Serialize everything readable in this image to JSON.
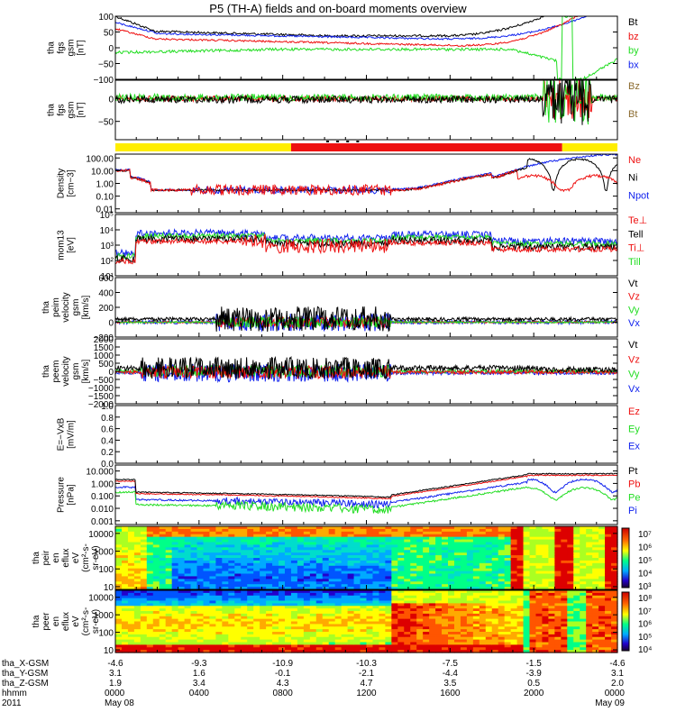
{
  "title": "P5 (TH-A) fields and on-board moments overview",
  "colors": {
    "black": "#000000",
    "red": "#ee1111",
    "green": "#22dd22",
    "blue": "#1122ee",
    "yellow": "#ffee00",
    "brown": "#8b6b2f"
  },
  "chart_data": [
    {
      "type": "line",
      "ylabel": [
        "tha",
        "fgs",
        "gsm",
        "[nT]"
      ],
      "yscale": "linear",
      "ylim": [
        -100,
        100
      ],
      "yticks": [
        "100",
        "50",
        "0",
        "−50",
        "−100"
      ],
      "legend": [
        {
          "label": "Bt",
          "color": "black"
        },
        {
          "label": "bz",
          "color": "red"
        },
        {
          "label": "by",
          "color": "green"
        },
        {
          "label": "bx",
          "color": "blue"
        }
      ]
    },
    {
      "type": "line",
      "ylabel": [
        "tha",
        "fgs",
        "gsm",
        "[nT]"
      ],
      "yscale": "linear",
      "ylim": [
        -90,
        40
      ],
      "yticks": [
        "0",
        "−50"
      ],
      "yticks_values": [
        0,
        -50
      ],
      "legend": [
        {
          "label": "Bz",
          "color": "brown"
        },
        {
          "label": "Bt",
          "color": "brown"
        }
      ]
    },
    {
      "type": "bar",
      "label": "region flag",
      "segments": [
        {
          "from": 0,
          "to": 0.35,
          "color": "yellow"
        },
        {
          "from": 0.35,
          "to": 0.89,
          "color": "red"
        },
        {
          "from": 0.89,
          "to": 1.0,
          "color": "yellow"
        }
      ]
    },
    {
      "type": "line",
      "ylabel": [
        "Density",
        "[cm−3]"
      ],
      "yscale": "log",
      "ylim": [
        0.005,
        200
      ],
      "yticks": [
        "100.00",
        "10.00",
        "1.00",
        "0.10",
        "0.01"
      ],
      "yticks_values": [
        100,
        10,
        1,
        0.1,
        0.01
      ],
      "legend": [
        {
          "label": "Ne",
          "color": "red"
        },
        {
          "label": "Ni",
          "color": "black"
        },
        {
          "label": "Npot",
          "color": "blue"
        }
      ]
    },
    {
      "type": "line",
      "ylabel": [
        "mom13",
        "[eV]"
      ],
      "yscale": "log",
      "ylim": [
        10,
        100000
      ],
      "yticks": [
        "10⁵",
        "10⁴",
        "10³",
        "10²",
        "10¹"
      ],
      "yticks_values": [
        100000,
        10000,
        1000,
        100,
        10
      ],
      "legend": [
        {
          "label": "Te⊥",
          "color": "red"
        },
        {
          "label": "Tell",
          "color": "black"
        },
        {
          "label": "Ti⊥",
          "color": "red"
        },
        {
          "label": "Till",
          "color": "green"
        }
      ]
    },
    {
      "type": "line",
      "ylabel": [
        "tha",
        "peim",
        "velocity",
        "gsm",
        "[km/s]"
      ],
      "yscale": "linear",
      "ylim": [
        -200,
        600
      ],
      "yticks": [
        "600",
        "400",
        "200",
        "0",
        "−200"
      ],
      "legend": [
        {
          "label": "Vt",
          "color": "black"
        },
        {
          "label": "Vz",
          "color": "red"
        },
        {
          "label": "Vy",
          "color": "green"
        },
        {
          "label": "Vx",
          "color": "blue"
        }
      ]
    },
    {
      "type": "line",
      "ylabel": [
        "tha",
        "peem",
        "velocity",
        "gsm",
        "[km/s]"
      ],
      "yscale": "linear",
      "ylim": [
        -2000,
        2000
      ],
      "yticks": [
        "2000",
        "1500",
        "1000",
        "500",
        "0",
        "−500",
        "−1000",
        "−1500",
        "−2000"
      ],
      "legend": [
        {
          "label": "Vt",
          "color": "black"
        },
        {
          "label": "Vz",
          "color": "red"
        },
        {
          "label": "Vy",
          "color": "green"
        },
        {
          "label": "Vx",
          "color": "blue"
        }
      ]
    },
    {
      "type": "line",
      "ylabel": [
        "E=−VxB",
        "[mV/m]"
      ],
      "yscale": "linear",
      "ylim": [
        0,
        1
      ],
      "yticks": [
        "1.0",
        "0.8",
        "0.6",
        "0.4",
        "0.2",
        "0.0"
      ],
      "legend": [
        {
          "label": "Ez",
          "color": "red"
        },
        {
          "label": "Ey",
          "color": "green"
        },
        {
          "label": "Ex",
          "color": "blue"
        }
      ]
    },
    {
      "type": "line",
      "ylabel": [
        "Pressure",
        "[nPa]"
      ],
      "yscale": "log",
      "ylim": [
        0.0005,
        30
      ],
      "yticks": [
        "10.000",
        "1.000",
        "0.100",
        "0.010",
        "0.001"
      ],
      "yticks_values": [
        10,
        1,
        0.1,
        0.01,
        0.001
      ],
      "legend": [
        {
          "label": "Pt",
          "color": "black"
        },
        {
          "label": "Pb",
          "color": "red"
        },
        {
          "label": "Pe",
          "color": "green"
        },
        {
          "label": "Pi",
          "color": "blue"
        }
      ]
    },
    {
      "type": "heatmap",
      "ylabel": [
        "tha",
        "peir",
        "en",
        "eflux",
        "eV",
        "(cm²-s-",
        "sr-eV)"
      ],
      "yscale": "log",
      "ylim": [
        7,
        25000
      ],
      "yticks": [
        "10000",
        "1000",
        "100",
        "10"
      ],
      "yticks_values": [
        10000,
        1000,
        100,
        10
      ],
      "colorbar": [
        "10⁷",
        "10⁶",
        "10⁵",
        "10⁴",
        "10³"
      ]
    },
    {
      "type": "heatmap",
      "ylabel": [
        "tha",
        "peer",
        "en",
        "eflux",
        "eV",
        "(cm²-s-",
        "sr-eV)"
      ],
      "yscale": "log",
      "ylim": [
        7,
        25000
      ],
      "yticks": [
        "10000",
        "1000",
        "100",
        "10"
      ],
      "yticks_values": [
        10000,
        1000,
        100,
        10
      ],
      "colorbar": [
        "10⁸",
        "10⁷",
        "10⁶",
        "10⁵",
        "10⁴"
      ]
    }
  ],
  "xaxis": {
    "row_labels": [
      "tha_X-GSM",
      "tha_Y-GSM",
      "tha_Z-GSM",
      "hhmm",
      "2011"
    ],
    "columns": [
      {
        "x": "-4.6",
        "y": "3.1",
        "z": "1.9",
        "hhmm": "0000",
        "date": "May 08"
      },
      {
        "x": "-9.3",
        "y": "1.6",
        "z": "3.4",
        "hhmm": "0400",
        "date": ""
      },
      {
        "x": "-10.9",
        "y": "-0.1",
        "z": "4.3",
        "hhmm": "0800",
        "date": ""
      },
      {
        "x": "-10.3",
        "y": "-2.1",
        "z": "4.7",
        "hhmm": "1200",
        "date": ""
      },
      {
        "x": "-7.5",
        "y": "-4.4",
        "z": "3.5",
        "hhmm": "1600",
        "date": ""
      },
      {
        "x": "-1.5",
        "y": "-3.9",
        "z": "0.5",
        "hhmm": "2000",
        "date": ""
      },
      {
        "x": "-4.6",
        "y": "3.1",
        "z": "2.0",
        "hhmm": "0000",
        "date": "May 09"
      }
    ]
  }
}
